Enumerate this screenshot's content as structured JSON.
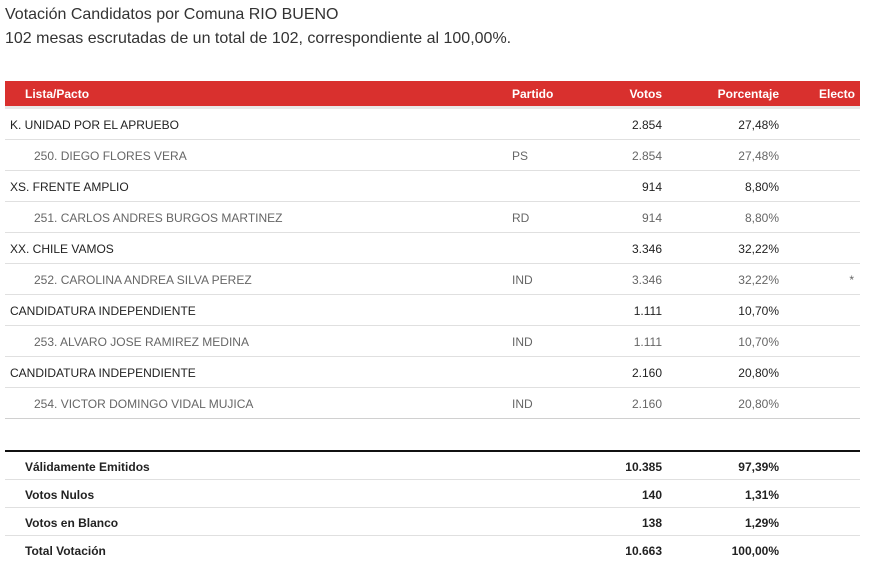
{
  "header": {
    "title": "Votación Candidatos por Comuna RIO BUENO",
    "subtitle": "102 mesas escrutadas de un total de 102, correspondiente al 100,00%."
  },
  "columns": {
    "lista": "Lista/Pacto",
    "partido": "Partido",
    "votos": "Votos",
    "porcentaje": "Porcentaje",
    "electo": "Electo"
  },
  "rows": [
    {
      "name": "K. UNIDAD POR EL APRUEBO",
      "partido": "",
      "votos": "2.854",
      "porcentaje": "27,48%",
      "electo": ""
    },
    {
      "name": "250. DIEGO FLORES VERA",
      "partido": "PS",
      "votos": "2.854",
      "porcentaje": "27,48%",
      "electo": ""
    },
    {
      "name": "XS. FRENTE AMPLIO",
      "partido": "",
      "votos": "914",
      "porcentaje": "8,80%",
      "electo": ""
    },
    {
      "name": "251. CARLOS ANDRES BURGOS MARTINEZ",
      "partido": "RD",
      "votos": "914",
      "porcentaje": "8,80%",
      "electo": ""
    },
    {
      "name": "XX. CHILE VAMOS",
      "partido": "",
      "votos": "3.346",
      "porcentaje": "32,22%",
      "electo": ""
    },
    {
      "name": "252. CAROLINA ANDREA SILVA PEREZ",
      "partido": "IND",
      "votos": "3.346",
      "porcentaje": "32,22%",
      "electo": "*"
    },
    {
      "name": "CANDIDATURA INDEPENDIENTE",
      "partido": "",
      "votos": "1.111",
      "porcentaje": "10,70%",
      "electo": ""
    },
    {
      "name": "253. ALVARO JOSE RAMIREZ MEDINA",
      "partido": "IND",
      "votos": "1.111",
      "porcentaje": "10,70%",
      "electo": ""
    },
    {
      "name": "CANDIDATURA INDEPENDIENTE",
      "partido": "",
      "votos": "2.160",
      "porcentaje": "20,80%",
      "electo": ""
    },
    {
      "name": "254. VICTOR DOMINGO VIDAL MUJICA",
      "partido": "IND",
      "votos": "2.160",
      "porcentaje": "20,80%",
      "electo": ""
    }
  ],
  "totals": [
    {
      "label": "Válidamente Emitidos",
      "votos": "10.385",
      "porcentaje": "97,39%"
    },
    {
      "label": "Votos Nulos",
      "votos": "140",
      "porcentaje": "1,31%"
    },
    {
      "label": "Votos en Blanco",
      "votos": "138",
      "porcentaje": "1,29%"
    },
    {
      "label": "Total Votación",
      "votos": "10.663",
      "porcentaje": "100,00%"
    }
  ]
}
